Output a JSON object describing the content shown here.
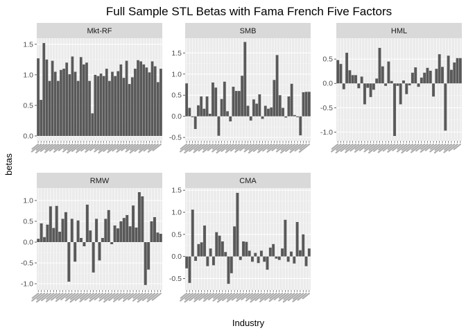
{
  "chart_data": {
    "type": "bar",
    "title": "Full Sample STL Betas with Fama French Five Factors",
    "xlabel": "Industry",
    "ylabel": "betas",
    "grid": true,
    "legend": "none",
    "colors": {
      "bar": "#595959",
      "panel_bg": "#ebebeb",
      "grid_major": "#ffffff",
      "grid_minor": "#f5f5f5",
      "strip_bg": "#d9d9d9"
    },
    "facets": [
      {
        "name": "Mkt-RF",
        "ylim": [
          -0.08,
          1.6
        ],
        "yticks": [
          "0.0",
          "0.5",
          "1.0",
          "1.5"
        ],
        "values": [
          1.27,
          0.59,
          1.52,
          1.25,
          0.9,
          1.23,
          1.05,
          0.9,
          1.08,
          1.1,
          1.2,
          1.01,
          1.3,
          1.05,
          0.9,
          1.29,
          1.17,
          1.2,
          0.9,
          0.37,
          1.0,
          0.98,
          1.02,
          0.98,
          1.1,
          0.9,
          1.05,
          0.98,
          1.06,
          1.17,
          0.95,
          1.23,
          0.85,
          0.96,
          1.1,
          1.24,
          1.22,
          1.17,
          1.12,
          1.04,
          1.22,
          1.14,
          0.88,
          1.1
        ]
      },
      {
        "name": "SMB",
        "ylim": [
          -0.58,
          1.85
        ],
        "yticks": [
          "-0.5",
          "0.0",
          "0.5",
          "1.0",
          "1.5"
        ],
        "values": [
          0.78,
          0.2,
          -0.02,
          -0.3,
          0.26,
          0.47,
          0.18,
          0.47,
          0.06,
          0.8,
          0.68,
          -0.46,
          0.41,
          0.82,
          0.12,
          -0.12,
          0.7,
          0.6,
          0.6,
          0.96,
          1.76,
          0.25,
          -0.1,
          0.4,
          0.3,
          0.52,
          -0.06,
          0.25,
          0.18,
          0.21,
          0.86,
          1.45,
          0.5,
          0.2,
          -0.03,
          0.47,
          0.77,
          0.03,
          -0.02,
          -0.45,
          0.57,
          0.58,
          0.58
        ]
      },
      {
        "name": "HML",
        "ylim": [
          -1.18,
          0.93
        ],
        "yticks": [
          "-1.0",
          "-0.5",
          "0.0",
          "0.5"
        ],
        "values": [
          0.48,
          0.4,
          -0.12,
          0.63,
          0.27,
          0.17,
          0.17,
          -0.1,
          0.14,
          -0.43,
          -0.09,
          -0.28,
          -0.13,
          0.1,
          0.73,
          0.35,
          -0.05,
          0.45,
          0.05,
          -1.08,
          -0.05,
          -0.43,
          0.06,
          -0.22,
          -0.04,
          0.22,
          0.33,
          -0.07,
          0.12,
          0.22,
          0.32,
          0.26,
          -0.27,
          0.3,
          0.6,
          0.34,
          -0.97,
          0.57,
          0.28,
          0.43,
          0.52,
          0.52
        ]
      },
      {
        "name": "RMW",
        "ylim": [
          -1.15,
          1.3
        ],
        "yticks": [
          "-1.0",
          "-0.5",
          "0.0",
          "0.5",
          "1.0"
        ],
        "values": [
          0.08,
          0.45,
          0.12,
          0.42,
          0.86,
          0.34,
          0.87,
          0.25,
          0.56,
          0.72,
          -0.95,
          0.56,
          -0.47,
          0.52,
          0.1,
          -0.1,
          0.9,
          0.28,
          -0.73,
          0.56,
          -0.44,
          0.1,
          0.56,
          0.77,
          -0.05,
          0.4,
          0.33,
          0.5,
          0.58,
          0.65,
          0.38,
          0.88,
          0.35,
          1.2,
          1.1,
          -1.03,
          -0.66,
          0.5,
          0.6,
          0.23,
          0.2
        ]
      },
      {
        "name": "CMA",
        "ylim": [
          -0.76,
          1.55
        ],
        "yticks": [
          "-0.5",
          "0.0",
          "0.5",
          "1.0",
          "1.5"
        ],
        "values": [
          -0.27,
          -0.6,
          1.06,
          -0.1,
          0.28,
          0.32,
          0.7,
          -0.22,
          0.18,
          -0.2,
          0.55,
          0.47,
          0.34,
          0.1,
          -0.62,
          -0.38,
          0.68,
          1.44,
          -0.08,
          0.34,
          0.33,
          0.13,
          -0.12,
          0.08,
          -0.15,
          0.13,
          -0.12,
          -0.3,
          0.2,
          0.28,
          -0.05,
          -0.08,
          0.18,
          0.83,
          -0.12,
          0.11,
          -0.16,
          0.78,
          0.14,
          0.5,
          -0.22,
          0.18
        ]
      }
    ]
  }
}
